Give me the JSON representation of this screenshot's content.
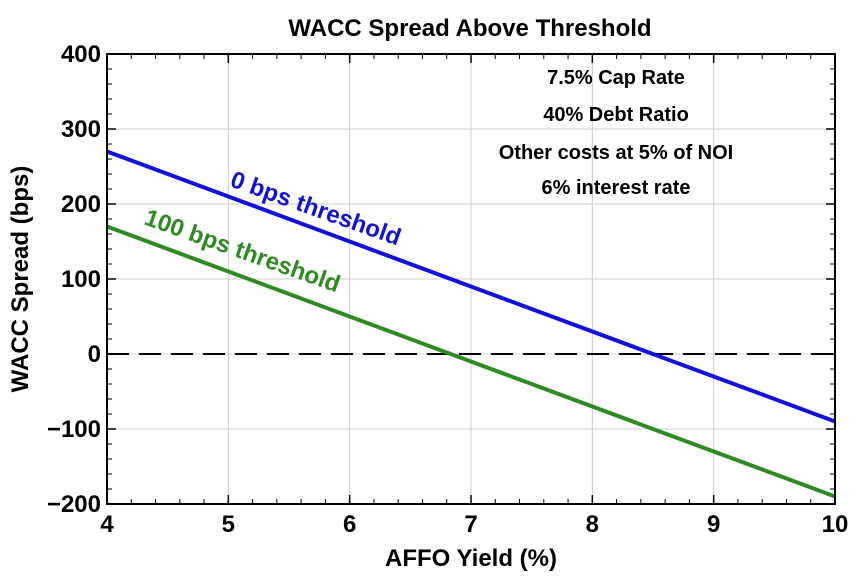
{
  "chart_data": {
    "type": "line",
    "title": "WACC Spread Above Threshold",
    "xlabel": "AFFO Yield (%)",
    "ylabel": "WACC Spread (bps)",
    "xlim": [
      4,
      10
    ],
    "ylim": [
      -200,
      400
    ],
    "xticks": [
      "4",
      "5",
      "6",
      "7",
      "8",
      "9",
      "10"
    ],
    "yticks": [
      "−200",
      "−100",
      "0",
      "100",
      "200",
      "300",
      "400"
    ],
    "xtick_values": [
      4,
      5,
      6,
      7,
      8,
      9,
      10
    ],
    "ytick_values": [
      -200,
      -100,
      0,
      100,
      200,
      300,
      400
    ],
    "grid": true,
    "reference_line": {
      "y": 0,
      "style": "dashed",
      "color": "#000000"
    },
    "series": [
      {
        "name": "0 bps threshold",
        "color": "#1010e0",
        "x": [
          4,
          10
        ],
        "y": [
          270,
          -90
        ]
      },
      {
        "name": "100 bps threshold",
        "color": "#2e8b22",
        "x": [
          4,
          10
        ],
        "y": [
          170,
          -190
        ]
      }
    ],
    "annotations": [
      "7.5% Cap Rate",
      "40% Debt Ratio",
      "Other costs at 5% of NOI",
      "6% interest rate"
    ]
  }
}
